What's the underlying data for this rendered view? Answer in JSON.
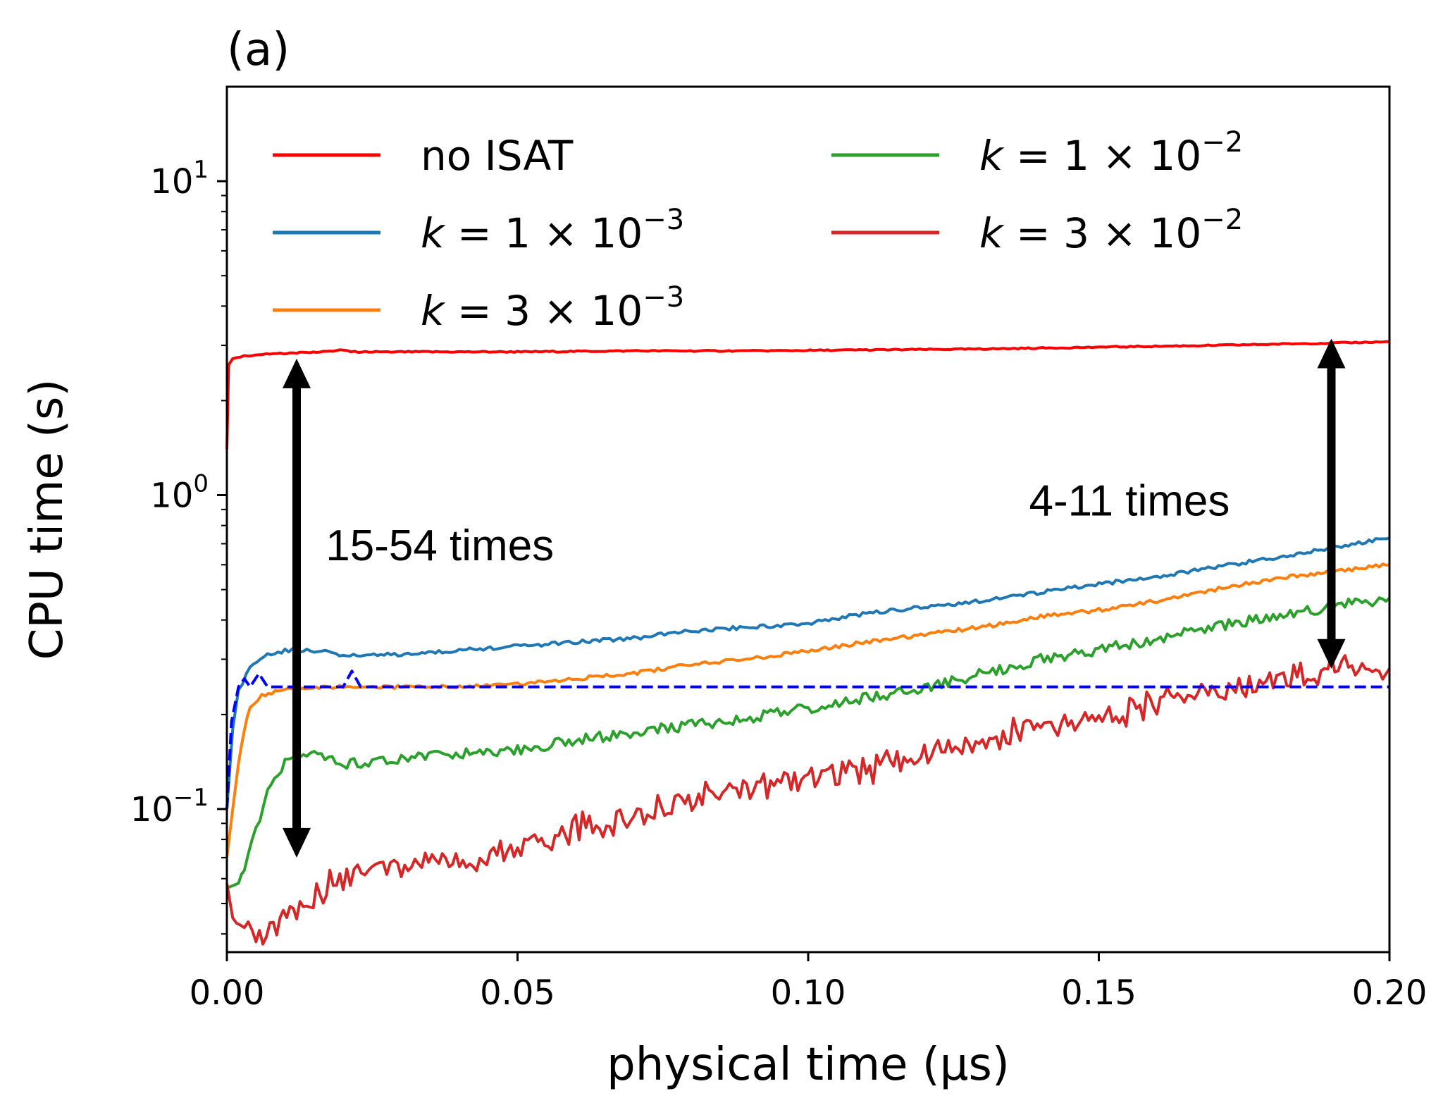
{
  "chart_data": {
    "type": "line",
    "panel_label": "(a)",
    "xlabel": "physical time (μs)",
    "ylabel": "CPU time (s)",
    "xlim": [
      0,
      0.2
    ],
    "ylim": [
      0.035,
      20
    ],
    "yscale": "log",
    "grid": false,
    "legend_placement": "top-left",
    "x_ticks": [
      {
        "value": 0.0,
        "label": "0.00"
      },
      {
        "value": 0.05,
        "label": "0.05"
      },
      {
        "value": 0.1,
        "label": "0.10"
      },
      {
        "value": 0.15,
        "label": "0.15"
      },
      {
        "value": 0.2,
        "label": "0.20"
      }
    ],
    "y_ticks": [
      {
        "value": 0.1,
        "base": "10",
        "exp": "−1"
      },
      {
        "value": 1,
        "base": "10",
        "exp": "0"
      },
      {
        "value": 10,
        "base": "10",
        "exp": "1"
      }
    ],
    "series": [
      {
        "name": "no ISAT",
        "legend": {
          "k": "",
          "mantissa": "",
          "exp": ""
        },
        "color": "#ff0000",
        "style": "solid",
        "points": [
          [
            0.0,
            1.4
          ],
          [
            0.0003,
            2.6
          ],
          [
            0.001,
            2.72
          ],
          [
            0.003,
            2.78
          ],
          [
            0.008,
            2.82
          ],
          [
            0.012,
            2.84
          ],
          [
            0.016,
            2.86
          ],
          [
            0.02,
            2.9
          ],
          [
            0.022,
            2.86
          ],
          [
            0.03,
            2.86
          ],
          [
            0.05,
            2.86
          ],
          [
            0.07,
            2.88
          ],
          [
            0.09,
            2.88
          ],
          [
            0.11,
            2.9
          ],
          [
            0.13,
            2.92
          ],
          [
            0.15,
            2.96
          ],
          [
            0.17,
            3.0
          ],
          [
            0.19,
            3.05
          ],
          [
            0.2,
            3.08
          ]
        ]
      },
      {
        "name": "k = 1 × 10^-3",
        "legend": {
          "k": "k",
          "mantissa": " = 1 × 10",
          "exp": "−3"
        },
        "color": "#1f77b4",
        "style": "solid",
        "points": [
          [
            0.0,
            0.1
          ],
          [
            0.001,
            0.18
          ],
          [
            0.002,
            0.24
          ],
          [
            0.004,
            0.28
          ],
          [
            0.007,
            0.31
          ],
          [
            0.01,
            0.32
          ],
          [
            0.015,
            0.32
          ],
          [
            0.02,
            0.31
          ],
          [
            0.03,
            0.31
          ],
          [
            0.04,
            0.32
          ],
          [
            0.05,
            0.33
          ],
          [
            0.06,
            0.34
          ],
          [
            0.07,
            0.35
          ],
          [
            0.08,
            0.37
          ],
          [
            0.09,
            0.38
          ],
          [
            0.1,
            0.39
          ],
          [
            0.11,
            0.42
          ],
          [
            0.12,
            0.44
          ],
          [
            0.13,
            0.46
          ],
          [
            0.14,
            0.49
          ],
          [
            0.15,
            0.52
          ],
          [
            0.16,
            0.55
          ],
          [
            0.17,
            0.59
          ],
          [
            0.18,
            0.63
          ],
          [
            0.19,
            0.68
          ],
          [
            0.2,
            0.73
          ]
        ]
      },
      {
        "name": "k = 3 × 10^-3",
        "legend": {
          "k": "k",
          "mantissa": " = 3 × 10",
          "exp": "−3"
        },
        "color": "#ff7f0e",
        "style": "solid",
        "points": [
          [
            0.0,
            0.07
          ],
          [
            0.001,
            0.1
          ],
          [
            0.002,
            0.14
          ],
          [
            0.003,
            0.18
          ],
          [
            0.004,
            0.21
          ],
          [
            0.006,
            0.23
          ],
          [
            0.01,
            0.24
          ],
          [
            0.02,
            0.245
          ],
          [
            0.03,
            0.245
          ],
          [
            0.04,
            0.245
          ],
          [
            0.05,
            0.25
          ],
          [
            0.06,
            0.26
          ],
          [
            0.07,
            0.27
          ],
          [
            0.08,
            0.29
          ],
          [
            0.09,
            0.3
          ],
          [
            0.1,
            0.32
          ],
          [
            0.11,
            0.34
          ],
          [
            0.12,
            0.36
          ],
          [
            0.13,
            0.38
          ],
          [
            0.14,
            0.41
          ],
          [
            0.15,
            0.43
          ],
          [
            0.16,
            0.46
          ],
          [
            0.17,
            0.5
          ],
          [
            0.18,
            0.54
          ],
          [
            0.19,
            0.57
          ],
          [
            0.2,
            0.6
          ]
        ]
      },
      {
        "name": "k = 1 × 10^-2",
        "legend": {
          "k": "k",
          "mantissa": " = 1 × 10",
          "exp": "−2"
        },
        "color": "#2ca02c",
        "style": "solid",
        "points": [
          [
            0.0,
            0.056
          ],
          [
            0.002,
            0.058
          ],
          [
            0.003,
            0.065
          ],
          [
            0.005,
            0.085
          ],
          [
            0.007,
            0.115
          ],
          [
            0.01,
            0.14
          ],
          [
            0.015,
            0.148
          ],
          [
            0.02,
            0.14
          ],
          [
            0.025,
            0.14
          ],
          [
            0.03,
            0.145
          ],
          [
            0.04,
            0.15
          ],
          [
            0.05,
            0.155
          ],
          [
            0.06,
            0.165
          ],
          [
            0.07,
            0.175
          ],
          [
            0.08,
            0.185
          ],
          [
            0.09,
            0.195
          ],
          [
            0.1,
            0.21
          ],
          [
            0.11,
            0.225
          ],
          [
            0.12,
            0.245
          ],
          [
            0.13,
            0.27
          ],
          [
            0.14,
            0.3
          ],
          [
            0.15,
            0.32
          ],
          [
            0.16,
            0.35
          ],
          [
            0.17,
            0.38
          ],
          [
            0.18,
            0.41
          ],
          [
            0.19,
            0.44
          ],
          [
            0.2,
            0.47
          ]
        ]
      },
      {
        "name": "k = 3 × 10^-2",
        "legend": {
          "k": "k",
          "mantissa": " = 3 × 10",
          "exp": "−2"
        },
        "color": "#d62728",
        "style": "solid",
        "points": [
          [
            0.0,
            0.058
          ],
          [
            0.001,
            0.045
          ],
          [
            0.003,
            0.04
          ],
          [
            0.005,
            0.039
          ],
          [
            0.008,
            0.042
          ],
          [
            0.012,
            0.048
          ],
          [
            0.016,
            0.055
          ],
          [
            0.02,
            0.06
          ],
          [
            0.025,
            0.062
          ],
          [
            0.03,
            0.065
          ],
          [
            0.04,
            0.07
          ],
          [
            0.05,
            0.075
          ],
          [
            0.06,
            0.085
          ],
          [
            0.07,
            0.095
          ],
          [
            0.08,
            0.105
          ],
          [
            0.09,
            0.115
          ],
          [
            0.1,
            0.125
          ],
          [
            0.11,
            0.135
          ],
          [
            0.12,
            0.15
          ],
          [
            0.13,
            0.165
          ],
          [
            0.14,
            0.18
          ],
          [
            0.15,
            0.195
          ],
          [
            0.16,
            0.215
          ],
          [
            0.17,
            0.235
          ],
          [
            0.18,
            0.255
          ],
          [
            0.19,
            0.285
          ],
          [
            0.2,
            0.28
          ]
        ]
      },
      {
        "name": "",
        "legend": null,
        "color": "#0000ff",
        "style": "dashed",
        "points": [
          [
            0.0,
            0.1
          ],
          [
            0.0008,
            0.19
          ],
          [
            0.002,
            0.245
          ],
          [
            0.003,
            0.26
          ],
          [
            0.004,
            0.245
          ],
          [
            0.0055,
            0.27
          ],
          [
            0.007,
            0.245
          ],
          [
            0.02,
            0.245
          ],
          [
            0.0215,
            0.275
          ],
          [
            0.023,
            0.245
          ],
          [
            0.05,
            0.245
          ],
          [
            0.1,
            0.245
          ],
          [
            0.15,
            0.245
          ],
          [
            0.2,
            0.245
          ]
        ]
      }
    ],
    "annotations": [
      {
        "text": "15-54 times",
        "arrow": {
          "x": 0.012,
          "y_from": 0.07,
          "y_to": 2.72
        },
        "text_x": 0.017,
        "text_y": 0.62
      },
      {
        "text": "4-11 times",
        "arrow": {
          "x": 0.19,
          "y_from": 0.28,
          "y_to": 3.15
        },
        "text_x": 0.138,
        "text_y": 0.86
      }
    ]
  }
}
